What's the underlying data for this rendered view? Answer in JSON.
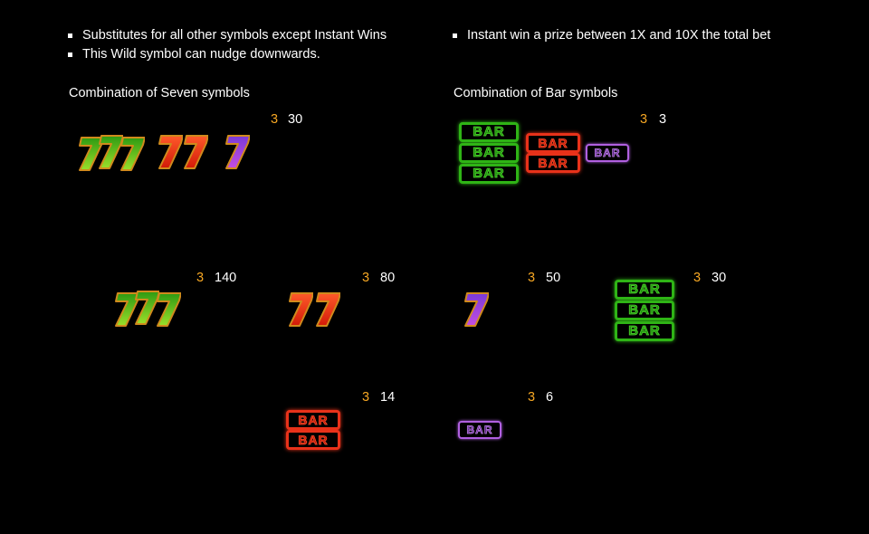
{
  "wild_rules": [
    "Substitutes for all other symbols except Instant Wins",
    "This Wild symbol can nudge downwards."
  ],
  "instant_rules": [
    "Instant win a prize between 1X and 10X the total bet"
  ],
  "headings": {
    "sevens": "Combination of Seven symbols",
    "bars": "Combination of Bar symbols"
  },
  "bar_label": "BAR",
  "seven_label": "7",
  "paytable": [
    {
      "symbol": "any-seven",
      "count": "3",
      "payout": "30"
    },
    {
      "symbol": "any-bar",
      "count": "3",
      "payout": "3"
    },
    {
      "symbol": "triple-seven-green",
      "count": "3",
      "payout": "140"
    },
    {
      "symbol": "double-seven-red",
      "count": "3",
      "payout": "80"
    },
    {
      "symbol": "single-seven-purple",
      "count": "3",
      "payout": "50"
    },
    {
      "symbol": "triple-bar-green",
      "count": "3",
      "payout": "30"
    },
    {
      "symbol": "double-bar-red",
      "count": "3",
      "payout": "14"
    },
    {
      "symbol": "single-bar-purple",
      "count": "3",
      "payout": "6"
    }
  ],
  "colors": {
    "count": "#f5a623",
    "green": "#2fb416",
    "red": "#e8321a",
    "purple": "#b060e0"
  }
}
